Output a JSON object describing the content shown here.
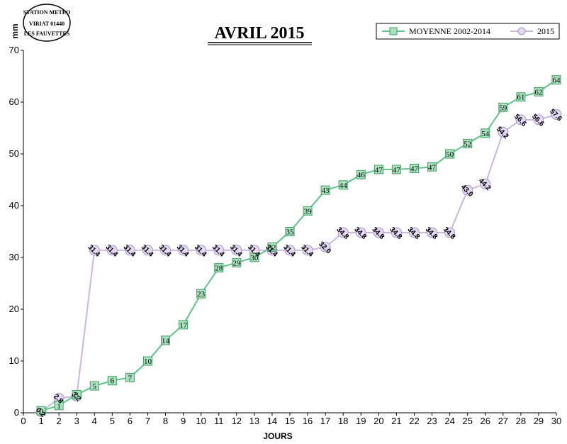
{
  "logo": {
    "line1": "STATION METEO",
    "line2": "VIRIAT 01440",
    "line3": "LES FAUVETTES"
  },
  "chart_data": {
    "type": "line",
    "title": "AVRIL 2015",
    "xlabel": "JOURS",
    "ylabel": "mm",
    "xlim": [
      0,
      30
    ],
    "ylim": [
      0,
      70
    ],
    "xticks": [
      0,
      1,
      2,
      3,
      4,
      5,
      6,
      7,
      8,
      9,
      10,
      11,
      12,
      13,
      14,
      15,
      16,
      17,
      18,
      19,
      20,
      21,
      22,
      23,
      24,
      25,
      26,
      27,
      28,
      29,
      30
    ],
    "yticks": [
      0,
      10,
      20,
      30,
      40,
      50,
      60,
      70
    ],
    "grid": false,
    "legend_position": "top-right",
    "series": [
      {
        "name": "MOYENNE 2002-2014",
        "color": "#5ec48a",
        "marker": "square",
        "x": [
          1,
          2,
          3,
          4,
          5,
          6,
          7,
          8,
          9,
          10,
          11,
          12,
          13,
          14,
          15,
          16,
          17,
          18,
          19,
          20,
          21,
          22,
          23,
          24,
          25,
          26,
          27,
          28,
          29,
          30
        ],
        "values": [
          0.4,
          1.4,
          3.5,
          5.2,
          6.2,
          6.8,
          10,
          14,
          17,
          23,
          28,
          29,
          30,
          32,
          35,
          39,
          43,
          44,
          46,
          47,
          47,
          47.2,
          47.5,
          50,
          52,
          54,
          59,
          61,
          62,
          64.3
        ],
        "labels": [
          "0",
          "1",
          "3",
          "5",
          "6",
          "7",
          "10",
          "14",
          "17",
          "23",
          "28",
          "29",
          "30",
          "32",
          "35",
          "39",
          "43",
          "44",
          "46",
          "47",
          "47",
          "47",
          "47",
          "50",
          "52",
          "54",
          "59",
          "61",
          "62",
          "64"
        ]
      },
      {
        "name": "2015",
        "color": "#c8b7e0",
        "marker": "circle",
        "x": [
          1,
          2,
          3,
          4,
          5,
          6,
          7,
          8,
          9,
          10,
          11,
          12,
          13,
          14,
          15,
          16,
          17,
          18,
          19,
          20,
          21,
          22,
          23,
          24,
          25,
          26,
          27,
          28,
          29,
          30
        ],
        "values": [
          0.2,
          2.8,
          3.2,
          31.4,
          31.4,
          31.4,
          31.4,
          31.4,
          31.4,
          31.4,
          31.4,
          31.4,
          31.4,
          31.4,
          31.4,
          31.4,
          32.0,
          34.8,
          34.8,
          34.8,
          34.8,
          34.8,
          34.8,
          34.8,
          43.0,
          44.2,
          54.2,
          56.6,
          56.6,
          57.6
        ],
        "labels": [
          "0.2",
          "2.8",
          "3.2",
          "31.4",
          "31.4",
          "31.4",
          "31.4",
          "31.4",
          "31.4",
          "31.4",
          "31.4",
          "31.4",
          "31.4",
          "31.4",
          "31.4",
          "31.4",
          "32.0",
          "34.8",
          "34.8",
          "34.8",
          "34.8",
          "34.8",
          "34.8",
          "34.8",
          "43.0",
          "44.2",
          "54.2",
          "56.6",
          "56.6",
          "57.6"
        ]
      }
    ]
  }
}
